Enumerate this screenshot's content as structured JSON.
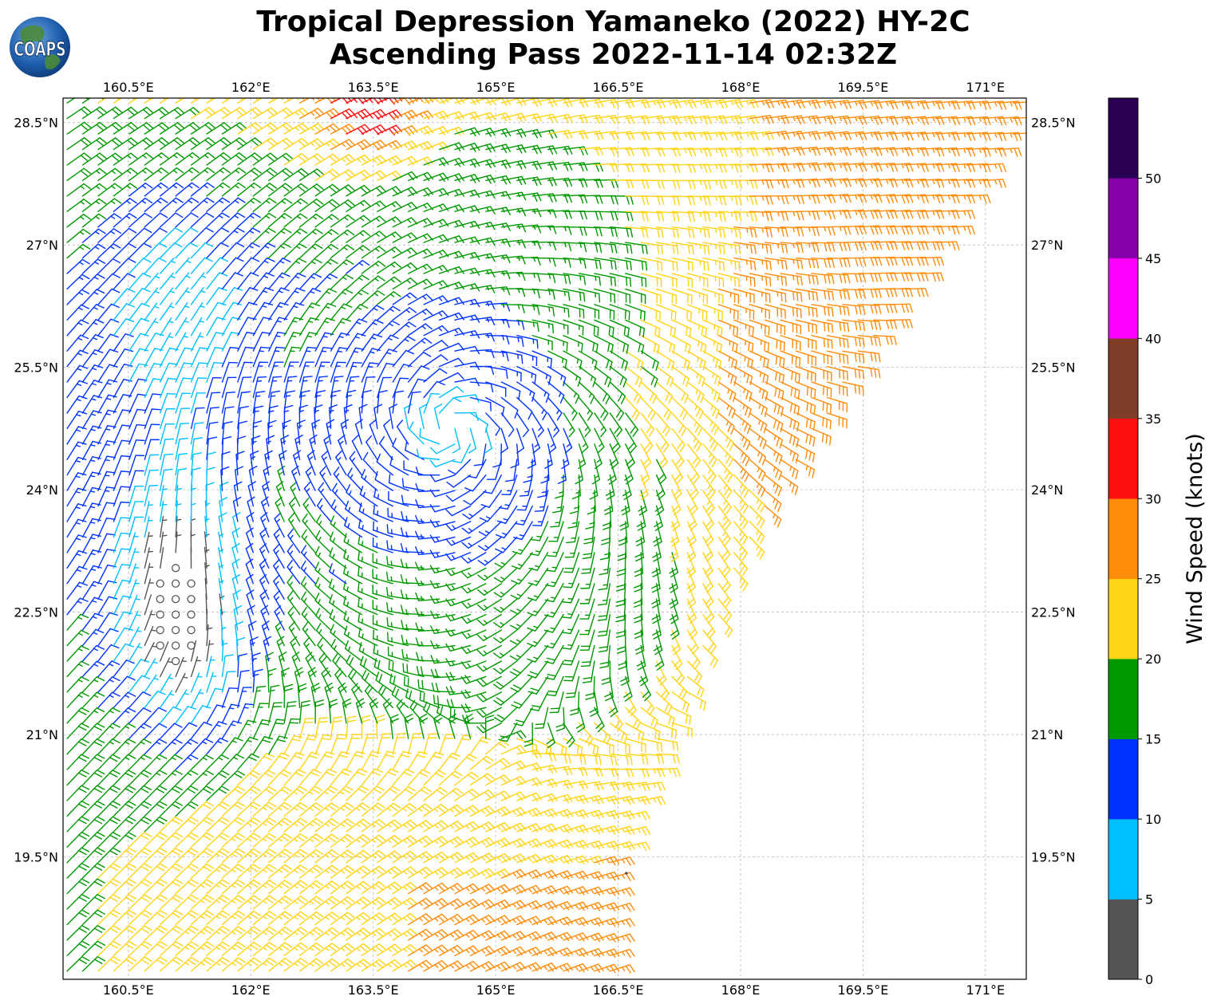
{
  "title": {
    "line1": "Tropical Depression Yamaneko (2022) HY-2C",
    "line2": "Ascending Pass 2022-11-14 02:32Z"
  },
  "logo": {
    "text": "COAPS"
  },
  "map": {
    "lon_range": [
      159.7,
      171.5
    ],
    "lat_range": [
      18.0,
      28.8
    ],
    "x_ticks": [
      {
        "value": 160.5,
        "label": "160.5°E"
      },
      {
        "value": 162.0,
        "label": "162°E"
      },
      {
        "value": 163.5,
        "label": "163.5°E"
      },
      {
        "value": 165.0,
        "label": "165°E"
      },
      {
        "value": 166.5,
        "label": "166.5°E"
      },
      {
        "value": 168.0,
        "label": "168°E"
      },
      {
        "value": 169.5,
        "label": "169.5°E"
      },
      {
        "value": 171.0,
        "label": "171°E"
      }
    ],
    "y_ticks": [
      {
        "value": 28.5,
        "label": "28.5°N"
      },
      {
        "value": 27.0,
        "label": "27°N"
      },
      {
        "value": 25.5,
        "label": "25.5°N"
      },
      {
        "value": 24.0,
        "label": "24°N"
      },
      {
        "value": 22.5,
        "label": "22.5°N"
      },
      {
        "value": 21.0,
        "label": "21°N"
      },
      {
        "value": 19.5,
        "label": "19.5°N"
      }
    ],
    "gridlines": true,
    "storm_center": {
      "lon": 164.45,
      "lat": 24.75
    },
    "swath_edge": [
      [
        171.5,
        28.5
      ],
      [
        170.0,
        26.3
      ],
      [
        168.2,
        23.6
      ],
      [
        166.5,
        19.3
      ]
    ],
    "land_dot": {
      "lon": 166.6,
      "lat": 19.3
    }
  },
  "colorbar": {
    "label": "Wind Speed (knots)",
    "bins": [
      {
        "min": 0,
        "max": 5,
        "color": "#555555"
      },
      {
        "min": 5,
        "max": 10,
        "color": "#00bfff"
      },
      {
        "min": 10,
        "max": 15,
        "color": "#0033ff"
      },
      {
        "min": 15,
        "max": 20,
        "color": "#009900"
      },
      {
        "min": 20,
        "max": 25,
        "color": "#ffd414"
      },
      {
        "min": 25,
        "max": 30,
        "color": "#ff8c0a"
      },
      {
        "min": 30,
        "max": 35,
        "color": "#ff1010"
      },
      {
        "min": 35,
        "max": 40,
        "color": "#803d28"
      },
      {
        "min": 40,
        "max": 45,
        "color": "#ff00ff"
      },
      {
        "min": 45,
        "max": 50,
        "color": "#8800aa"
      },
      {
        "min": 50,
        "max": 55,
        "color": "#2a0055"
      }
    ],
    "tick_labels": [
      "0",
      "5",
      "10",
      "15",
      "20",
      "25",
      "30",
      "35",
      "40",
      "45",
      "50"
    ]
  }
}
